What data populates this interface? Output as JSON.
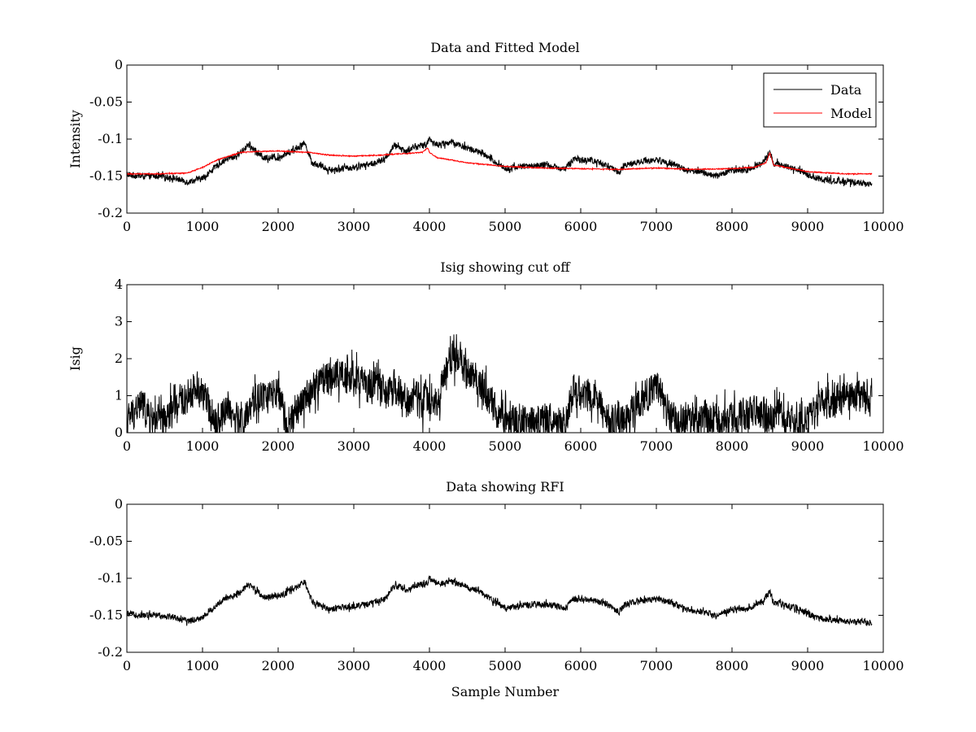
{
  "chart_data": [
    {
      "type": "line",
      "title": "Data and Fitted Model",
      "xlabel": "",
      "ylabel": "Intensity",
      "xlim": [
        0,
        10000
      ],
      "ylim": [
        -0.2,
        0
      ],
      "xticks": [
        0,
        1000,
        2000,
        3000,
        4000,
        5000,
        6000,
        7000,
        8000,
        9000,
        10000
      ],
      "xtick_labels": [
        "0",
        "1000",
        "2000",
        "3000",
        "4000",
        "5000",
        "6000",
        "7000",
        "8000",
        "9000",
        "10000"
      ],
      "yticks": [
        -0.2,
        -0.15,
        -0.1,
        -0.05,
        0
      ],
      "ytick_labels": [
        "-0.2",
        "-0.15",
        "-0.1",
        "-0.05",
        "0"
      ],
      "grid": false,
      "legend": {
        "position": "top-right",
        "entries": [
          "Data",
          "Model"
        ]
      },
      "series": [
        {
          "name": "Data",
          "color": "#000000",
          "noise": 0.004,
          "x": [
            0,
            200,
            400,
            600,
            800,
            1000,
            1200,
            1300,
            1450,
            1600,
            1700,
            1800,
            2000,
            2200,
            2350,
            2450,
            2700,
            3000,
            3300,
            3400,
            3550,
            3700,
            3800,
            3950,
            4000,
            4100,
            4300,
            4500,
            4700,
            4900,
            5000,
            5200,
            5500,
            5800,
            5900,
            6100,
            6300,
            6500,
            6600,
            6800,
            7000,
            7200,
            7400,
            7600,
            7800,
            8000,
            8200,
            8400,
            8500,
            8550,
            8700,
            8900,
            9000,
            9200,
            9500,
            9850
          ],
          "values": [
            -0.148,
            -0.15,
            -0.15,
            -0.152,
            -0.158,
            -0.153,
            -0.135,
            -0.128,
            -0.123,
            -0.108,
            -0.115,
            -0.125,
            -0.125,
            -0.115,
            -0.105,
            -0.132,
            -0.142,
            -0.138,
            -0.132,
            -0.128,
            -0.108,
            -0.117,
            -0.11,
            -0.108,
            -0.1,
            -0.108,
            -0.104,
            -0.112,
            -0.12,
            -0.133,
            -0.14,
            -0.137,
            -0.135,
            -0.14,
            -0.128,
            -0.128,
            -0.133,
            -0.145,
            -0.135,
            -0.13,
            -0.128,
            -0.133,
            -0.142,
            -0.145,
            -0.15,
            -0.142,
            -0.142,
            -0.132,
            -0.118,
            -0.133,
            -0.136,
            -0.142,
            -0.148,
            -0.155,
            -0.158,
            -0.16
          ]
        },
        {
          "name": "Model",
          "color": "#ff0000",
          "noise": 0.0006,
          "x": [
            0,
            400,
            800,
            1000,
            1200,
            1500,
            1700,
            2000,
            2400,
            2700,
            3000,
            3300,
            3600,
            3900,
            3980,
            4000,
            4100,
            4500,
            5000,
            5500,
            6000,
            6500,
            7000,
            7500,
            8000,
            8300,
            8450,
            8500,
            8550,
            8700,
            9000,
            9500,
            9850
          ],
          "values": [
            -0.147,
            -0.147,
            -0.146,
            -0.138,
            -0.128,
            -0.118,
            -0.117,
            -0.116,
            -0.118,
            -0.122,
            -0.123,
            -0.122,
            -0.12,
            -0.118,
            -0.112,
            -0.118,
            -0.125,
            -0.132,
            -0.137,
            -0.139,
            -0.14,
            -0.141,
            -0.139,
            -0.141,
            -0.14,
            -0.138,
            -0.132,
            -0.118,
            -0.135,
            -0.138,
            -0.144,
            -0.147,
            -0.147
          ]
        }
      ]
    },
    {
      "type": "line",
      "title": "Isig showing cut off",
      "xlabel": "",
      "ylabel": "Isig",
      "xlim": [
        0,
        10000
      ],
      "ylim": [
        0,
        4
      ],
      "xticks": [
        0,
        1000,
        2000,
        3000,
        4000,
        5000,
        6000,
        7000,
        8000,
        9000,
        10000
      ],
      "xtick_labels": [
        "0",
        "1000",
        "2000",
        "3000",
        "4000",
        "5000",
        "6000",
        "7000",
        "8000",
        "9000",
        "10000"
      ],
      "yticks": [
        0,
        1,
        2,
        3,
        4
      ],
      "ytick_labels": [
        "0",
        "1",
        "2",
        "3",
        "4"
      ],
      "grid": false,
      "series": [
        {
          "name": "Isig",
          "color": "#000000",
          "noise": 0.45,
          "floor": 0,
          "x": [
            0,
            100,
            200,
            300,
            500,
            600,
            700,
            900,
            1000,
            1100,
            1200,
            1350,
            1400,
            1500,
            1600,
            1700,
            1800,
            1900,
            2000,
            2100,
            2200,
            2300,
            2400,
            2600,
            2800,
            3000,
            3200,
            3300,
            3400,
            3550,
            3700,
            3800,
            3900,
            4000,
            4100,
            4200,
            4300,
            4400,
            4500,
            4700,
            4900,
            5100,
            5300,
            5500,
            5600,
            5700,
            5800,
            5900,
            6000,
            6200,
            6300,
            6400,
            6600,
            6700,
            6800,
            7000,
            7100,
            7200,
            7300,
            7400,
            7600,
            7800,
            8000,
            8200,
            8400,
            8500,
            8700,
            8800,
            9000,
            9200,
            9400,
            9600,
            9850
          ],
          "values": [
            0.3,
            0.6,
            0.8,
            0.4,
            0.3,
            0.6,
            0.8,
            1.2,
            1.1,
            0.6,
            0.3,
            0.8,
            0.4,
            0.3,
            0.4,
            0.9,
            1.0,
            1.0,
            1.0,
            0.3,
            0.3,
            0.8,
            1.0,
            1.5,
            1.6,
            1.5,
            1.2,
            1.5,
            1.0,
            1.2,
            0.8,
            1.0,
            0.9,
            0.9,
            0.9,
            1.5,
            2.1,
            2.0,
            1.6,
            1.3,
            0.5,
            0.4,
            0.3,
            0.3,
            0.4,
            0.3,
            0.3,
            1.2,
            1.0,
            1.1,
            0.6,
            0.3,
            0.3,
            0.6,
            0.9,
            1.2,
            0.8,
            0.4,
            0.3,
            0.3,
            0.4,
            0.3,
            0.4,
            0.5,
            0.5,
            0.4,
            0.4,
            0.3,
            0.3,
            0.8,
            0.9,
            1.0,
            0.9
          ]
        }
      ]
    },
    {
      "type": "line",
      "title": "Data showing RFI",
      "xlabel": "Sample Number",
      "ylabel": "",
      "xlim": [
        0,
        10000
      ],
      "ylim": [
        -0.2,
        0
      ],
      "xticks": [
        0,
        1000,
        2000,
        3000,
        4000,
        5000,
        6000,
        7000,
        8000,
        9000,
        10000
      ],
      "xtick_labels": [
        "0",
        "1000",
        "2000",
        "3000",
        "4000",
        "5000",
        "6000",
        "7000",
        "8000",
        "9000",
        "10000"
      ],
      "yticks": [
        -0.2,
        -0.15,
        -0.1,
        -0.05,
        0
      ],
      "ytick_labels": [
        "-0.2",
        "-0.15",
        "-0.1",
        "-0.05",
        "0"
      ],
      "grid": false,
      "series": [
        {
          "name": "Data",
          "color": "#000000",
          "noise": 0.004,
          "x": [
            0,
            200,
            400,
            600,
            800,
            1000,
            1200,
            1300,
            1450,
            1600,
            1700,
            1800,
            2000,
            2200,
            2350,
            2450,
            2700,
            3000,
            3300,
            3400,
            3550,
            3700,
            3800,
            3950,
            4000,
            4100,
            4300,
            4500,
            4700,
            4900,
            5000,
            5200,
            5500,
            5800,
            5900,
            6100,
            6300,
            6500,
            6600,
            6800,
            7000,
            7200,
            7400,
            7600,
            7800,
            8000,
            8200,
            8400,
            8500,
            8550,
            8700,
            8900,
            9000,
            9200,
            9500,
            9850
          ],
          "values": [
            -0.148,
            -0.15,
            -0.15,
            -0.152,
            -0.158,
            -0.153,
            -0.135,
            -0.128,
            -0.123,
            -0.108,
            -0.115,
            -0.125,
            -0.125,
            -0.115,
            -0.105,
            -0.132,
            -0.142,
            -0.138,
            -0.132,
            -0.128,
            -0.108,
            -0.117,
            -0.11,
            -0.108,
            -0.1,
            -0.108,
            -0.104,
            -0.112,
            -0.12,
            -0.133,
            -0.14,
            -0.137,
            -0.135,
            -0.14,
            -0.128,
            -0.128,
            -0.133,
            -0.145,
            -0.135,
            -0.13,
            -0.128,
            -0.133,
            -0.142,
            -0.145,
            -0.15,
            -0.142,
            -0.142,
            -0.132,
            -0.118,
            -0.133,
            -0.136,
            -0.142,
            -0.148,
            -0.155,
            -0.158,
            -0.16
          ]
        }
      ]
    }
  ]
}
